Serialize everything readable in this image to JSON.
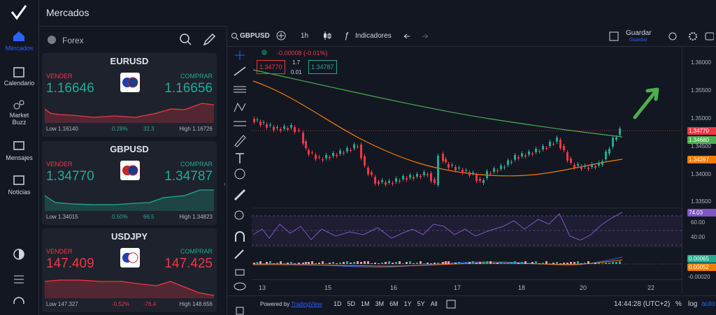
{
  "sidebar": {
    "nav": [
      "Mercados",
      "Calendario",
      "Market Buzz",
      "Mensajes",
      "Noticias"
    ]
  },
  "header": {
    "title": "Mercados"
  },
  "panel": {
    "tab": "Forex",
    "cards": [
      {
        "symbol": "EURUSD",
        "sell_label": "VENDER",
        "sell": "1.16646",
        "buy_label": "COMPRAR",
        "buy": "1.16656",
        "low": "Low 1.16140",
        "change_pct": "0.28%",
        "change_pips": "32.3",
        "high": "High 1.16726"
      },
      {
        "symbol": "GBPUSD",
        "sell_label": "VENDER",
        "sell": "1.34770",
        "buy_label": "COMPRAR",
        "buy": "1.34787",
        "low": "Low 1.34015",
        "change_pct": "0.50%",
        "change_pips": "66.5",
        "high": "High 1.34823"
      },
      {
        "symbol": "USDJPY",
        "sell_label": "VENDER",
        "sell": "147.409",
        "buy_label": "COMPRAR",
        "buy": "147.425",
        "low": "Low 147.327",
        "change_pct": "-0.52%",
        "change_pips": "-76.4",
        "high": "High 148.656"
      }
    ]
  },
  "chart": {
    "toolbar": {
      "symbol": "GBPUSD",
      "interval": "1h",
      "indicators": "Indicadores",
      "save": "Guardar",
      "save_sub": "Guardar"
    },
    "legend": {
      "change": "-0.00008 (-0.01%)",
      "sell": "1.34770",
      "spread_top": "1.7",
      "spread_bottom": "0.01",
      "buy": "1.34787"
    },
    "price_axis": [
      "1.36000",
      "1.35500",
      "1.35000",
      "1.34500",
      "1.34000",
      "1.33500"
    ],
    "price_tags": {
      "last": "1.34770",
      "ma_green": "1.34680",
      "ma_orange": "1.34267"
    },
    "rsi": {
      "value": "74.03",
      "levels": [
        "60.00",
        "40.00"
      ]
    },
    "macd": {
      "values": [
        "0.00065",
        "0.00052"
      ],
      "axis": "-0.00020"
    },
    "time_axis": [
      "13",
      "15",
      "16",
      "17",
      "18",
      "20",
      "22"
    ],
    "bottom": {
      "powered": "Powered by",
      "brand": "TradingView",
      "ranges": [
        "1D",
        "5D",
        "1M",
        "3M",
        "6M",
        "1Y",
        "5Y",
        "All"
      ],
      "clock": "14:44:28 (UTC+2)",
      "percent": "%",
      "log": "log",
      "auto": "auto"
    }
  }
}
